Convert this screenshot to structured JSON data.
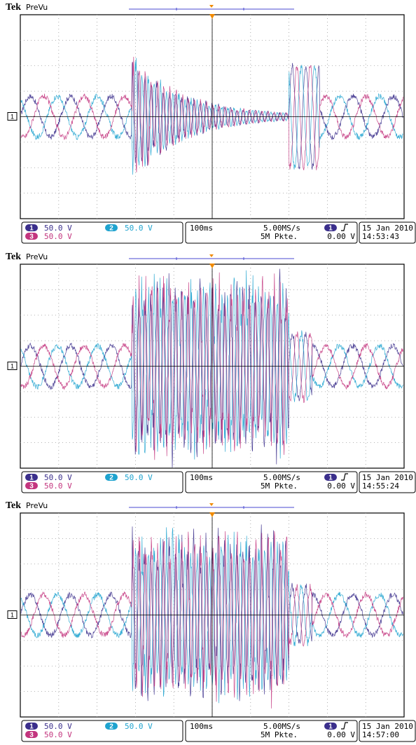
{
  "scope": {
    "brand": "Tek",
    "mode": "PreVu",
    "colors": {
      "ch1": "#3b2f8c",
      "ch2": "#1fa3cf",
      "ch3": "#c3357e",
      "grid": "#9a9a9a",
      "frame": "#000000"
    }
  },
  "chart_data": [
    {
      "type": "line",
      "title": "",
      "xlabel": "",
      "ylabel": "",
      "x_divisions": 10,
      "y_divisions": 8,
      "grid": true,
      "segments": [
        {
          "from_div": 0.0,
          "to_div": 2.9,
          "kind": "steady",
          "amplitude_div": 0.8
        },
        {
          "from_div": 2.9,
          "to_div": 7.0,
          "kind": "decaying",
          "start_amplitude_div": 2.2,
          "end_amplitude_div": 0.15
        },
        {
          "from_div": 7.0,
          "to_div": 7.8,
          "kind": "transient",
          "amplitude_div": 2.0
        },
        {
          "from_div": 7.8,
          "to_div": 10.0,
          "kind": "steady",
          "amplitude_div": 0.8
        }
      ],
      "series": [
        {
          "channel": 1,
          "scale": "50.0 V",
          "color": "#3b2f8c"
        },
        {
          "channel": 2,
          "scale": "50.0 V",
          "color": "#1fa3cf"
        },
        {
          "channel": 3,
          "scale": "50.0 V",
          "color": "#c3357e"
        }
      ],
      "status": {
        "timebase": "100ms",
        "sample_rate": "5.00MS/s",
        "record_length": "5M Pkte.",
        "trigger_level": "0.00 V",
        "date": "15 Jan  2010",
        "time": "14:53:43"
      }
    },
    {
      "type": "line",
      "title": "",
      "xlabel": "",
      "ylabel": "",
      "x_divisions": 10,
      "y_divisions": 8,
      "grid": true,
      "segments": [
        {
          "from_div": 0.0,
          "to_div": 2.9,
          "kind": "steady",
          "amplitude_div": 0.8
        },
        {
          "from_div": 2.9,
          "to_div": 7.0,
          "kind": "oscillation",
          "amplitude_div": 3.2
        },
        {
          "from_div": 7.0,
          "to_div": 7.6,
          "kind": "transient",
          "amplitude_div": 1.3
        },
        {
          "from_div": 7.6,
          "to_div": 10.0,
          "kind": "steady",
          "amplitude_div": 0.8
        }
      ],
      "series": [
        {
          "channel": 1,
          "scale": "50.0 V",
          "color": "#3b2f8c"
        },
        {
          "channel": 2,
          "scale": "50.0 V",
          "color": "#1fa3cf"
        },
        {
          "channel": 3,
          "scale": "50.0 V",
          "color": "#c3357e"
        }
      ],
      "status": {
        "timebase": "100ms",
        "sample_rate": "5.00MS/s",
        "record_length": "5M Pkte.",
        "trigger_level": "0.00 V",
        "date": "15 Jan  2010",
        "time": "14:55:24"
      }
    },
    {
      "type": "line",
      "title": "",
      "xlabel": "",
      "ylabel": "",
      "x_divisions": 10,
      "y_divisions": 8,
      "grid": true,
      "segments": [
        {
          "from_div": 0.0,
          "to_div": 2.9,
          "kind": "steady",
          "amplitude_div": 0.8
        },
        {
          "from_div": 2.9,
          "to_div": 7.0,
          "kind": "oscillation",
          "amplitude_div": 3.0
        },
        {
          "from_div": 7.0,
          "to_div": 7.6,
          "kind": "transient",
          "amplitude_div": 1.1
        },
        {
          "from_div": 7.6,
          "to_div": 10.0,
          "kind": "steady",
          "amplitude_div": 0.8
        }
      ],
      "series": [
        {
          "channel": 1,
          "scale": "50.0 V",
          "color": "#3b2f8c"
        },
        {
          "channel": 2,
          "scale": "50.0 V",
          "color": "#1fa3cf"
        },
        {
          "channel": 3,
          "scale": "50.0 V",
          "color": "#c3357e"
        }
      ],
      "status": {
        "timebase": "100ms",
        "sample_rate": "5.00MS/s",
        "record_length": "5M Pkte.",
        "trigger_level": "0.00 V",
        "date": "15 Jan  2010",
        "time": "14:57:00"
      }
    }
  ]
}
